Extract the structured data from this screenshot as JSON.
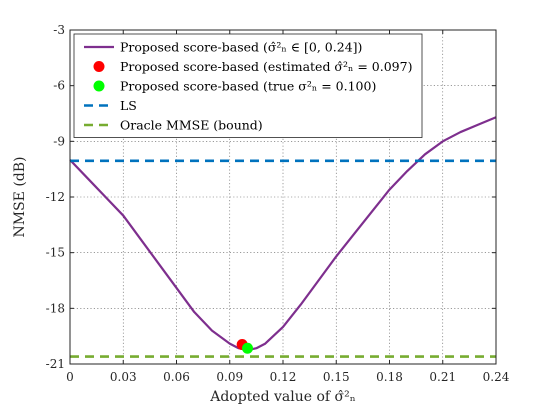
{
  "chart_data": {
    "type": "line",
    "title": "",
    "xlabel": "Adopted value of σ̂²ₙ",
    "ylabel": "NMSE (dB)",
    "xlim": [
      0,
      0.24
    ],
    "ylim": [
      -21,
      -3
    ],
    "x_ticks": [
      0,
      0.03,
      0.06,
      0.09,
      0.12,
      0.15,
      0.18,
      0.21,
      0.24
    ],
    "x_tick_labels": [
      "0",
      "0.03",
      "0.06",
      "0.09",
      "0.12",
      "0.15",
      "0.18",
      "0.21",
      "0.24"
    ],
    "y_ticks": [
      -21,
      -18,
      -15,
      -12,
      -9,
      -6,
      -3
    ],
    "y_tick_labels": [
      "-21",
      "-18",
      "-15",
      "-12",
      "-9",
      "-6",
      "-3"
    ],
    "grid": true,
    "legend_position": "top-left",
    "series": [
      {
        "name": "Proposed score-based (σ̂²ₙ ∈ [0, 0.24])",
        "kind": "line",
        "color": "#7E2F8E",
        "x": [
          0,
          0.01,
          0.02,
          0.03,
          0.04,
          0.05,
          0.06,
          0.07,
          0.08,
          0.09,
          0.095,
          0.1,
          0.105,
          0.11,
          0.12,
          0.13,
          0.14,
          0.15,
          0.16,
          0.17,
          0.18,
          0.19,
          0.2,
          0.21,
          0.22,
          0.23,
          0.24
        ],
        "y": [
          -10.0,
          -11.0,
          -12.0,
          -13.0,
          -14.3,
          -15.6,
          -16.9,
          -18.2,
          -19.2,
          -19.9,
          -20.15,
          -20.25,
          -20.15,
          -19.9,
          -19.0,
          -17.8,
          -16.5,
          -15.2,
          -14.0,
          -12.8,
          -11.6,
          -10.6,
          -9.7,
          -9.0,
          -8.5,
          -8.1,
          -7.7
        ]
      },
      {
        "name": "Proposed score-based (estimated σ̂²ₙ = 0.097)",
        "kind": "marker",
        "color": "#FF0000",
        "x": [
          0.097
        ],
        "y": [
          -19.95
        ]
      },
      {
        "name": "Proposed score-based (true σ²ₙ = 0.100)",
        "kind": "marker",
        "color": "#00FF00",
        "x": [
          0.1
        ],
        "y": [
          -20.15
        ]
      },
      {
        "name": "LS",
        "kind": "hline",
        "color": "#0072BD",
        "y": -10.05
      },
      {
        "name": "Oracle MMSE (bound)",
        "kind": "hline",
        "color": "#77AC30",
        "y": -20.6
      }
    ]
  }
}
